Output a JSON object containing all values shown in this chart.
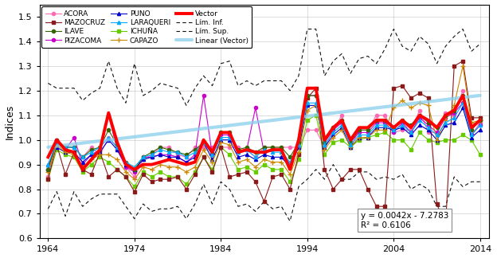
{
  "years": [
    1964,
    1965,
    1966,
    1967,
    1968,
    1969,
    1970,
    1971,
    1972,
    1973,
    1974,
    1975,
    1976,
    1977,
    1978,
    1979,
    1980,
    1981,
    1982,
    1983,
    1984,
    1985,
    1986,
    1987,
    1988,
    1989,
    1990,
    1991,
    1992,
    1993,
    1994,
    1995,
    1996,
    1997,
    1998,
    1999,
    2000,
    2001,
    2002,
    2003,
    2004,
    2005,
    2006,
    2007,
    2008,
    2009,
    2010,
    2011,
    2012,
    2013,
    2014
  ],
  "vector": [
    0.93,
    1.0,
    0.96,
    0.95,
    0.88,
    0.92,
    0.96,
    1.11,
    0.99,
    0.9,
    0.88,
    0.9,
    0.9,
    0.91,
    0.92,
    0.91,
    0.9,
    0.91,
    1.0,
    0.95,
    1.03,
    1.03,
    0.95,
    0.96,
    0.95,
    0.95,
    0.96,
    0.96,
    0.88,
    1.0,
    1.21,
    1.21,
    1.0,
    1.05,
    1.08,
    1.0,
    1.05,
    1.05,
    1.08,
    1.08,
    1.05,
    1.08,
    1.05,
    1.1,
    1.08,
    1.05,
    1.1,
    1.12,
    1.18,
    1.05,
    1.08
  ],
  "acora": [
    0.85,
    1.0,
    0.97,
    0.97,
    0.93,
    0.97,
    0.94,
    1.01,
    0.97,
    0.89,
    0.85,
    0.92,
    0.94,
    0.97,
    0.97,
    0.94,
    0.93,
    0.97,
    0.97,
    0.97,
    0.97,
    0.97,
    0.97,
    0.96,
    0.93,
    0.97,
    0.97,
    0.97,
    0.97,
    0.97,
    1.04,
    1.04,
    0.97,
    1.04,
    1.1,
    0.97,
    1.04,
    1.04,
    1.1,
    1.1,
    1.03,
    1.04,
    1.04,
    1.12,
    1.03,
    1.03,
    1.11,
    1.1,
    1.2,
    1.02,
    1.07
  ],
  "pizacoma": [
    0.88,
    1.0,
    0.96,
    1.01,
    0.9,
    0.94,
    0.96,
    1.1,
    0.96,
    0.89,
    0.87,
    0.93,
    0.93,
    0.94,
    0.94,
    0.93,
    0.91,
    0.94,
    1.18,
    0.94,
    1.02,
    1.02,
    0.95,
    0.96,
    1.13,
    0.95,
    0.96,
    0.96,
    0.9,
    0.99,
    1.18,
    1.18,
    0.99,
    1.04,
    1.07,
    0.99,
    1.03,
    1.03,
    1.07,
    1.07,
    1.03,
    1.07,
    1.03,
    1.09,
    1.06,
    1.03,
    1.09,
    1.11,
    1.15,
    1.02,
    1.06
  ],
  "ichuna": [
    0.84,
    0.96,
    0.94,
    0.93,
    0.87,
    0.9,
    0.93,
    0.91,
    0.88,
    0.85,
    0.81,
    0.87,
    0.85,
    0.87,
    0.85,
    0.85,
    0.82,
    0.87,
    0.93,
    0.88,
    0.97,
    0.94,
    0.88,
    0.89,
    0.87,
    0.9,
    0.88,
    0.88,
    0.83,
    0.92,
    1.08,
    1.1,
    0.94,
    0.99,
    1.0,
    0.97,
    1.0,
    1.01,
    1.02,
    1.03,
    1.0,
    1.0,
    0.96,
    1.03,
    1.0,
    0.99,
    1.0,
    1.0,
    1.02,
    1.0,
    0.94
  ],
  "mazocruz": [
    0.84,
    0.98,
    0.86,
    0.95,
    0.88,
    0.86,
    0.95,
    0.85,
    0.88,
    0.85,
    0.79,
    0.86,
    0.83,
    0.84,
    0.84,
    0.85,
    0.8,
    0.86,
    0.93,
    0.87,
    0.97,
    0.85,
    0.86,
    0.87,
    0.83,
    0.75,
    0.85,
    0.86,
    0.8,
    0.94,
    1.17,
    1.21,
    0.88,
    0.8,
    0.84,
    0.88,
    0.88,
    0.8,
    0.73,
    0.73,
    1.21,
    1.22,
    1.17,
    1.19,
    1.17,
    0.74,
    0.65,
    1.3,
    1.32,
    1.09,
    1.09
  ],
  "puno": [
    0.9,
    0.97,
    0.95,
    0.95,
    0.91,
    0.94,
    0.95,
    1.0,
    0.96,
    0.9,
    0.88,
    0.92,
    0.93,
    0.94,
    0.93,
    0.93,
    0.91,
    0.93,
    0.99,
    0.92,
    1.0,
    1.0,
    0.93,
    0.94,
    0.92,
    0.94,
    0.93,
    0.93,
    0.89,
    0.97,
    1.14,
    1.14,
    0.97,
    1.02,
    1.05,
    0.97,
    1.01,
    1.01,
    1.05,
    1.05,
    1.04,
    1.05,
    1.02,
    1.06,
    1.04,
    1.0,
    1.06,
    1.07,
    1.13,
    1.01,
    1.04
  ],
  "capazo": [
    0.87,
    0.98,
    0.95,
    0.94,
    0.89,
    0.92,
    0.94,
    0.94,
    0.92,
    0.87,
    0.84,
    0.89,
    0.88,
    0.9,
    0.89,
    0.89,
    0.87,
    0.89,
    0.96,
    0.91,
    0.99,
    0.98,
    0.91,
    0.92,
    0.89,
    0.92,
    0.91,
    0.91,
    0.86,
    0.95,
    1.12,
    1.14,
    0.96,
    1.01,
    1.04,
    0.97,
    1.01,
    1.01,
    1.04,
    1.04,
    1.13,
    1.16,
    1.13,
    1.15,
    1.14,
    1.0,
    1.08,
    1.14,
    1.3,
    1.07,
    1.08
  ],
  "ilave": [
    0.88,
    1.0,
    0.97,
    0.97,
    0.93,
    0.96,
    0.97,
    1.04,
    0.98,
    0.91,
    0.88,
    0.93,
    0.95,
    0.97,
    0.96,
    0.95,
    0.94,
    0.96,
    0.99,
    0.95,
    1.03,
    1.03,
    0.96,
    0.97,
    0.95,
    0.97,
    0.97,
    0.97,
    0.93,
    0.99,
    1.18,
    1.18,
    0.99,
    1.05,
    1.08,
    0.99,
    1.04,
    1.04,
    1.08,
    1.08,
    1.05,
    1.08,
    1.06,
    1.1,
    1.07,
    1.05,
    1.1,
    1.12,
    1.18,
    1.04,
    1.08
  ],
  "laraqueri": [
    0.9,
    0.99,
    0.97,
    0.97,
    0.93,
    0.95,
    0.97,
    1.01,
    0.97,
    0.91,
    0.89,
    0.93,
    0.94,
    0.96,
    0.95,
    0.95,
    0.93,
    0.95,
    0.99,
    0.94,
    1.01,
    1.01,
    0.95,
    0.96,
    0.93,
    0.96,
    0.95,
    0.95,
    0.91,
    0.98,
    1.15,
    1.15,
    0.98,
    1.03,
    1.06,
    0.98,
    1.02,
    1.02,
    1.06,
    1.06,
    1.04,
    1.06,
    1.03,
    1.08,
    1.05,
    1.02,
    1.07,
    1.09,
    1.15,
    1.02,
    1.06
  ],
  "lim_inf": [
    0.72,
    0.79,
    0.69,
    0.79,
    0.73,
    0.76,
    0.78,
    0.78,
    0.78,
    0.73,
    0.68,
    0.74,
    0.71,
    0.72,
    0.72,
    0.73,
    0.68,
    0.74,
    0.82,
    0.74,
    0.83,
    0.8,
    0.73,
    0.74,
    0.71,
    0.75,
    0.72,
    0.73,
    0.67,
    0.81,
    0.84,
    0.88,
    0.84,
    0.9,
    0.84,
    0.84,
    0.87,
    0.87,
    0.84,
    0.85,
    0.84,
    0.86,
    0.8,
    0.82,
    0.8,
    0.73,
    0.73,
    0.85,
    0.81,
    0.83,
    0.83
  ],
  "lim_sup": [
    1.23,
    1.21,
    1.21,
    1.21,
    1.16,
    1.19,
    1.21,
    1.32,
    1.21,
    1.15,
    1.31,
    1.18,
    1.2,
    1.23,
    1.22,
    1.21,
    1.14,
    1.21,
    1.26,
    1.22,
    1.31,
    1.32,
    1.22,
    1.24,
    1.22,
    1.24,
    1.24,
    1.24,
    1.2,
    1.26,
    1.45,
    1.45,
    1.26,
    1.32,
    1.35,
    1.27,
    1.33,
    1.34,
    1.31,
    1.37,
    1.45,
    1.38,
    1.36,
    1.42,
    1.39,
    1.31,
    1.38,
    1.42,
    1.45,
    1.36,
    1.39
  ],
  "linear_slope": 0.0042,
  "linear_intercept": -7.2783,
  "r2": 0.6106,
  "ylabel": "Indices",
  "ylim": [
    0.6,
    1.55
  ],
  "xlim": [
    1963,
    2015
  ],
  "colors": {
    "acora": "#ff69b4",
    "pizacoma": "#cc00cc",
    "ichuna": "#66cc00",
    "mazocruz": "#8b1a1a",
    "puno": "#0000cc",
    "capazo": "#cc8800",
    "ilave": "#336600",
    "laraqueri": "#00aaff",
    "vector": "#ff0000",
    "lim_inf": "#111111",
    "lim_sup": "#111111",
    "linear": "#87ceeb"
  },
  "legend": {
    "acora": "ACORA",
    "pizacoma": "PIZACOMA",
    "ichuna": "ICHUÑA",
    "mazocruz": "MAZOCRUZ",
    "puno": "PUNO",
    "capazo": "CAPAZO",
    "ilave": "ILAVE",
    "laraqueri": "LARAQUERI",
    "vector": "Vector",
    "lim_inf": "Lím. Inf.",
    "lim_sup": "Lím. Sup.",
    "linear": "Linear (Vector)"
  },
  "xticks": [
    1964,
    1974,
    1984,
    1994,
    2004,
    2014
  ],
  "yticks": [
    0.6,
    0.7,
    0.8,
    0.9,
    1.0,
    1.1,
    1.2,
    1.3,
    1.4,
    1.5
  ],
  "figsize": [
    6.24,
    3.24
  ],
  "dpi": 100
}
